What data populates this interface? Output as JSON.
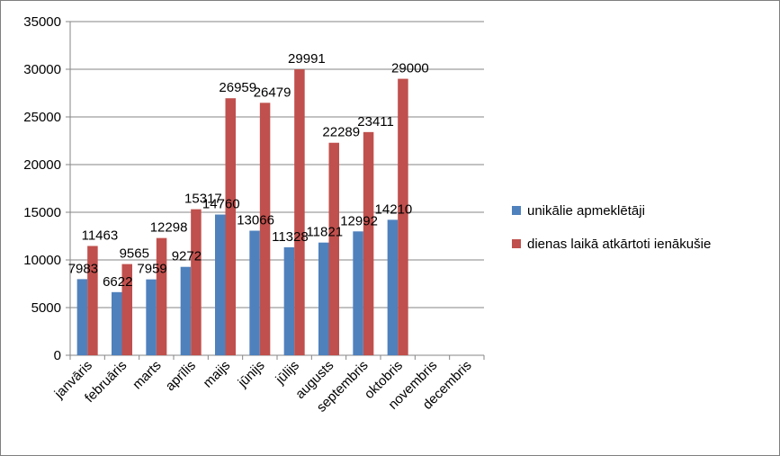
{
  "chart_data": {
    "type": "bar",
    "categories": [
      "janvāris",
      "februāris",
      "marts",
      "aprīlis",
      "maijs",
      "jūnijs",
      "jūlijs",
      "augusts",
      "septembris",
      "oktobris",
      "novembris",
      "decembris"
    ],
    "series": [
      {
        "name": "unikālie apmeklētāji",
        "color": "#4f81bd",
        "values": [
          7983,
          6622,
          7959,
          9272,
          14760,
          13066,
          11328,
          11821,
          12992,
          14210,
          null,
          null
        ]
      },
      {
        "name": "dienas laikā atkārtoti ienākušie",
        "color": "#c0504d",
        "values": [
          11463,
          9565,
          12298,
          15317,
          26959,
          26479,
          29991,
          22289,
          23411,
          29000,
          null,
          null
        ]
      }
    ],
    "yticks": [
      "0",
      "5000",
      "10000",
      "15000",
      "20000",
      "25000",
      "30000",
      "35000"
    ],
    "ylim": [
      0,
      35000
    ],
    "grid": true,
    "legend_position": "right"
  }
}
